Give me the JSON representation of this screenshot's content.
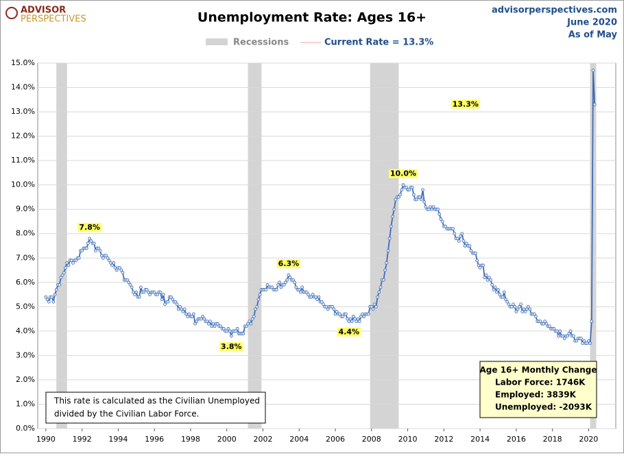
{
  "header": {
    "logo_top": "ADVISOR",
    "logo_bottom": "PERSPECTIVES",
    "site": "advisorperspectives.com",
    "date": "June 2020",
    "as_of": "As of May"
  },
  "note": {
    "lines": [
      "This rate is calculated as the Civilian Unemployed",
      "divided by the Civilian Labor Force."
    ]
  },
  "change_box": {
    "title": "Age 16+ Monthly Change",
    "lines": [
      "Labor Force:  1746K",
      "Employed:  3839K",
      "Unemployed:  -2093K"
    ]
  },
  "chart_data": {
    "type": "line",
    "title": "Unemployment Rate: Ages 16+",
    "xlim": [
      1989.55,
      2021.5
    ],
    "xticks": [
      1990,
      1992,
      1994,
      1996,
      1998,
      2000,
      2002,
      2004,
      2006,
      2008,
      2010,
      2012,
      2014,
      2016,
      2018,
      2020
    ],
    "ylim": [
      0,
      15
    ],
    "yticks": [
      {
        "value": 0,
        "label": "0.0%"
      },
      {
        "value": 1,
        "label": "1.0%"
      },
      {
        "value": 2,
        "label": "2.0%"
      },
      {
        "value": 3,
        "label": "3.0%"
      },
      {
        "value": 4,
        "label": "4.0%"
      },
      {
        "value": 5,
        "label": "5.0%"
      },
      {
        "value": 6,
        "label": "6.0%"
      },
      {
        "value": 7,
        "label": "7.0%"
      },
      {
        "value": 8,
        "label": "8.0%"
      },
      {
        "value": 9,
        "label": "9.0%"
      },
      {
        "value": 10,
        "label": "10.0%"
      },
      {
        "value": 11,
        "label": "11.0%"
      },
      {
        "value": 12,
        "label": "12.0%"
      },
      {
        "value": 13,
        "label": "13.0%"
      },
      {
        "value": 14,
        "label": "14.0%"
      },
      {
        "value": 15,
        "label": "15.0%"
      }
    ],
    "grid": true,
    "recessions": {
      "name": "Recessions",
      "color": "#d4d4d4",
      "spans": [
        [
          1990.58,
          1991.17
        ],
        [
          2001.17,
          2001.92
        ],
        [
          2007.92,
          2009.5
        ],
        [
          2020.08,
          2020.42
        ]
      ]
    },
    "annotations": [
      {
        "label": "7.8%",
        "x": 1992.417,
        "y": 7.8,
        "position": "above"
      },
      {
        "label": "3.8%",
        "x": 2000.25,
        "y": 3.8,
        "position": "below"
      },
      {
        "label": "6.3%",
        "x": 2003.417,
        "y": 6.3,
        "position": "above"
      },
      {
        "label": "4.4%",
        "x": 2006.75,
        "y": 4.4,
        "position": "below"
      },
      {
        "label": "10.0%",
        "x": 2009.75,
        "y": 10.0,
        "position": "above"
      },
      {
        "label": "13.3%",
        "x": 2020.333,
        "y": 13.3,
        "position": "far-left"
      }
    ],
    "series": [
      {
        "name": "Current Rate = 13.3%",
        "color": "#3d6cb4",
        "legend_color": "#f2a0b0",
        "x": [
          1990,
          1990.083,
          1990.167,
          1990.25,
          1990.333,
          1990.417,
          1990.5,
          1990.583,
          1990.667,
          1990.75,
          1990.833,
          1990.917,
          1991,
          1991.083,
          1991.167,
          1991.25,
          1991.333,
          1991.417,
          1991.5,
          1991.583,
          1991.667,
          1991.75,
          1991.833,
          1991.917,
          1992,
          1992.083,
          1992.167,
          1992.25,
          1992.333,
          1992.417,
          1992.5,
          1992.583,
          1992.667,
          1992.75,
          1992.833,
          1992.917,
          1993,
          1993.083,
          1993.167,
          1993.25,
          1993.333,
          1993.417,
          1993.5,
          1993.583,
          1993.667,
          1993.75,
          1993.833,
          1993.917,
          1994,
          1994.083,
          1994.167,
          1994.25,
          1994.333,
          1994.417,
          1994.5,
          1994.583,
          1994.667,
          1994.75,
          1994.833,
          1994.917,
          1995,
          1995.083,
          1995.167,
          1995.25,
          1995.333,
          1995.417,
          1995.5,
          1995.583,
          1995.667,
          1995.75,
          1995.833,
          1995.917,
          1996,
          1996.083,
          1996.167,
          1996.25,
          1996.333,
          1996.417,
          1996.5,
          1996.583,
          1996.667,
          1996.75,
          1996.833,
          1996.917,
          1997,
          1997.083,
          1997.167,
          1997.25,
          1997.333,
          1997.417,
          1997.5,
          1997.583,
          1997.667,
          1997.75,
          1997.833,
          1997.917,
          1998,
          1998.083,
          1998.167,
          1998.25,
          1998.333,
          1998.417,
          1998.5,
          1998.583,
          1998.667,
          1998.75,
          1998.833,
          1998.917,
          1999,
          1999.083,
          1999.167,
          1999.25,
          1999.333,
          1999.417,
          1999.5,
          1999.583,
          1999.667,
          1999.75,
          1999.833,
          1999.917,
          2000,
          2000.083,
          2000.167,
          2000.25,
          2000.333,
          2000.417,
          2000.5,
          2000.583,
          2000.667,
          2000.75,
          2000.833,
          2000.917,
          2001,
          2001.083,
          2001.167,
          2001.25,
          2001.333,
          2001.417,
          2001.5,
          2001.583,
          2001.667,
          2001.75,
          2001.833,
          2001.917,
          2002,
          2002.083,
          2002.167,
          2002.25,
          2002.333,
          2002.417,
          2002.5,
          2002.583,
          2002.667,
          2002.75,
          2002.833,
          2002.917,
          2003,
          2003.083,
          2003.167,
          2003.25,
          2003.333,
          2003.417,
          2003.5,
          2003.583,
          2003.667,
          2003.75,
          2003.833,
          2003.917,
          2004,
          2004.083,
          2004.167,
          2004.25,
          2004.333,
          2004.417,
          2004.5,
          2004.583,
          2004.667,
          2004.75,
          2004.833,
          2004.917,
          2005,
          2005.083,
          2005.167,
          2005.25,
          2005.333,
          2005.417,
          2005.5,
          2005.583,
          2005.667,
          2005.75,
          2005.833,
          2005.917,
          2006,
          2006.083,
          2006.167,
          2006.25,
          2006.333,
          2006.417,
          2006.5,
          2006.583,
          2006.667,
          2006.75,
          2006.833,
          2006.917,
          2007,
          2007.083,
          2007.167,
          2007.25,
          2007.333,
          2007.417,
          2007.5,
          2007.583,
          2007.667,
          2007.75,
          2007.833,
          2007.917,
          2008,
          2008.083,
          2008.167,
          2008.25,
          2008.333,
          2008.417,
          2008.5,
          2008.583,
          2008.667,
          2008.75,
          2008.833,
          2008.917,
          2009,
          2009.083,
          2009.167,
          2009.25,
          2009.333,
          2009.417,
          2009.5,
          2009.583,
          2009.667,
          2009.75,
          2009.833,
          2009.917,
          2010,
          2010.083,
          2010.167,
          2010.25,
          2010.333,
          2010.417,
          2010.5,
          2010.583,
          2010.667,
          2010.75,
          2010.833,
          2010.917,
          2011,
          2011.083,
          2011.167,
          2011.25,
          2011.333,
          2011.417,
          2011.5,
          2011.583,
          2011.667,
          2011.75,
          2011.833,
          2011.917,
          2012,
          2012.083,
          2012.167,
          2012.25,
          2012.333,
          2012.417,
          2012.5,
          2012.583,
          2012.667,
          2012.75,
          2012.833,
          2012.917,
          2013,
          2013.083,
          2013.167,
          2013.25,
          2013.333,
          2013.417,
          2013.5,
          2013.583,
          2013.667,
          2013.75,
          2013.833,
          2013.917,
          2014,
          2014.083,
          2014.167,
          2014.25,
          2014.333,
          2014.417,
          2014.5,
          2014.583,
          2014.667,
          2014.75,
          2014.833,
          2014.917,
          2015,
          2015.083,
          2015.167,
          2015.25,
          2015.333,
          2015.417,
          2015.5,
          2015.583,
          2015.667,
          2015.75,
          2015.833,
          2015.917,
          2016,
          2016.083,
          2016.167,
          2016.25,
          2016.333,
          2016.417,
          2016.5,
          2016.583,
          2016.667,
          2016.75,
          2016.833,
          2016.917,
          2017,
          2017.083,
          2017.167,
          2017.25,
          2017.333,
          2017.417,
          2017.5,
          2017.583,
          2017.667,
          2017.75,
          2017.833,
          2017.917,
          2018,
          2018.083,
          2018.167,
          2018.25,
          2018.333,
          2018.417,
          2018.5,
          2018.583,
          2018.667,
          2018.75,
          2018.833,
          2018.917,
          2019,
          2019.083,
          2019.167,
          2019.25,
          2019.333,
          2019.417,
          2019.5,
          2019.583,
          2019.667,
          2019.75,
          2019.833,
          2019.917,
          2020,
          2020.083,
          2020.167,
          2020.25,
          2020.333
        ],
        "values": [
          5.4,
          5.3,
          5.2,
          5.4,
          5.4,
          5.2,
          5.5,
          5.7,
          5.9,
          5.9,
          6.2,
          6.3,
          6.4,
          6.6,
          6.8,
          6.7,
          6.9,
          6.9,
          6.8,
          6.9,
          6.9,
          7.0,
          7.0,
          7.3,
          7.3,
          7.4,
          7.4,
          7.4,
          7.6,
          7.8,
          7.7,
          7.6,
          7.6,
          7.3,
          7.4,
          7.4,
          7.3,
          7.1,
          7.0,
          7.1,
          7.1,
          7.0,
          6.9,
          6.8,
          6.7,
          6.8,
          6.6,
          6.5,
          6.6,
          6.6,
          6.5,
          6.4,
          6.1,
          6.1,
          6.1,
          6.0,
          5.9,
          5.8,
          5.6,
          5.5,
          5.6,
          5.4,
          5.4,
          5.8,
          5.6,
          5.6,
          5.7,
          5.7,
          5.6,
          5.5,
          5.6,
          5.6,
          5.6,
          5.5,
          5.5,
          5.6,
          5.6,
          5.3,
          5.5,
          5.1,
          5.2,
          5.2,
          5.4,
          5.4,
          5.3,
          5.2,
          5.2,
          5.1,
          4.9,
          5.0,
          4.9,
          4.8,
          4.9,
          4.7,
          4.6,
          4.7,
          4.6,
          4.6,
          4.7,
          4.3,
          4.4,
          4.5,
          4.5,
          4.5,
          4.6,
          4.5,
          4.4,
          4.4,
          4.3,
          4.4,
          4.2,
          4.3,
          4.2,
          4.3,
          4.3,
          4.2,
          4.2,
          4.1,
          4.1,
          4.0,
          4.0,
          4.1,
          4.0,
          3.8,
          4.0,
          4.0,
          4.0,
          4.1,
          3.9,
          3.9,
          3.9,
          3.9,
          4.2,
          4.2,
          4.3,
          4.4,
          4.3,
          4.5,
          4.6,
          4.9,
          5.0,
          5.3,
          5.5,
          5.7,
          5.7,
          5.7,
          5.7,
          5.9,
          5.8,
          5.8,
          5.8,
          5.7,
          5.7,
          5.7,
          5.9,
          6.0,
          5.8,
          5.9,
          5.9,
          6.0,
          6.1,
          6.3,
          6.2,
          6.1,
          6.1,
          6.0,
          5.8,
          5.7,
          5.7,
          5.6,
          5.8,
          5.6,
          5.6,
          5.6,
          5.5,
          5.4,
          5.4,
          5.5,
          5.4,
          5.4,
          5.3,
          5.4,
          5.2,
          5.2,
          5.1,
          5.0,
          5.0,
          4.9,
          5.0,
          5.0,
          5.0,
          4.9,
          4.7,
          4.8,
          4.7,
          4.7,
          4.6,
          4.6,
          4.7,
          4.7,
          4.5,
          4.4,
          4.5,
          4.4,
          4.6,
          4.5,
          4.4,
          4.5,
          4.4,
          4.6,
          4.7,
          4.6,
          4.7,
          4.7,
          4.7,
          5.0,
          5.0,
          4.9,
          5.1,
          5.0,
          5.4,
          5.6,
          5.8,
          6.1,
          6.1,
          6.5,
          6.8,
          7.3,
          7.8,
          8.3,
          8.7,
          9.0,
          9.4,
          9.5,
          9.5,
          9.6,
          9.8,
          10.0,
          9.9,
          9.9,
          9.8,
          9.8,
          9.9,
          9.9,
          9.6,
          9.4,
          9.4,
          9.5,
          9.5,
          9.4,
          9.8,
          9.3,
          9.1,
          9.0,
          9.0,
          9.1,
          9.0,
          9.1,
          9.0,
          9.0,
          9.0,
          8.8,
          8.6,
          8.5,
          8.3,
          8.3,
          8.2,
          8.2,
          8.2,
          8.2,
          8.2,
          8.0,
          7.8,
          7.8,
          7.7,
          7.9,
          8.0,
          7.7,
          7.5,
          7.6,
          7.5,
          7.5,
          7.3,
          7.2,
          7.2,
          7.2,
          6.9,
          6.7,
          6.6,
          6.7,
          6.7,
          6.2,
          6.3,
          6.1,
          6.2,
          6.1,
          5.9,
          5.7,
          5.8,
          5.6,
          5.7,
          5.5,
          5.4,
          5.4,
          5.6,
          5.3,
          5.2,
          5.1,
          5.0,
          5.0,
          5.1,
          5.0,
          4.8,
          4.9,
          5.0,
          5.1,
          4.8,
          4.9,
          4.8,
          4.9,
          5.0,
          4.9,
          4.7,
          4.7,
          4.7,
          4.6,
          4.4,
          4.4,
          4.4,
          4.3,
          4.3,
          4.4,
          4.3,
          4.2,
          4.2,
          4.1,
          4.1,
          4.1,
          4.0,
          4.0,
          3.8,
          4.0,
          3.8,
          3.8,
          3.7,
          3.8,
          3.8,
          3.9,
          4.0,
          3.8,
          3.8,
          3.6,
          3.6,
          3.7,
          3.7,
          3.7,
          3.5,
          3.6,
          3.5,
          3.5,
          3.6,
          3.5,
          4.4,
          14.7,
          13.3
        ]
      }
    ]
  }
}
